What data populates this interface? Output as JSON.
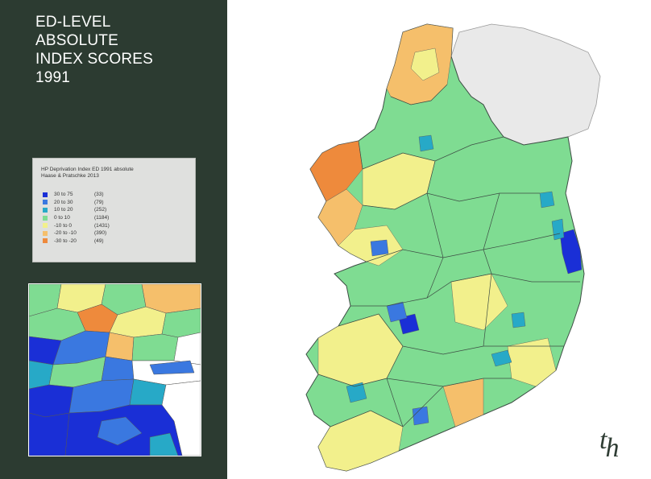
{
  "slide": {
    "title": "ED-LEVEL\nABSOLUTE\nINDEX SCORES\n1991",
    "logo_text": [
      "t",
      "h"
    ]
  },
  "legend": {
    "title": "HP Deprivation Index ED 1991 absolute\nHaase & Pratschke 2013",
    "items": [
      {
        "range": "30 to 75",
        "count": "(33)",
        "color": "#1a2fd6"
      },
      {
        "range": "20 to 30",
        "count": "(79)",
        "color": "#3a78e0"
      },
      {
        "range": "10 to 20",
        "count": "(252)",
        "color": "#27a9c7"
      },
      {
        "range": "0 to 10",
        "count": "(1184)",
        "color": "#7fdc92"
      },
      {
        "range": "-10 to 0",
        "count": "(1431)",
        "color": "#f2f08c"
      },
      {
        "range": "-20 to -10",
        "count": "(390)",
        "color": "#f5bf6b"
      },
      {
        "range": "-30 to -20",
        "count": "(49)",
        "color": "#ee8a3c"
      }
    ]
  },
  "colors": {
    "sidebar": "#2c3b31",
    "northern_ireland": "#e9e9e9",
    "sea": "#ffffff"
  }
}
